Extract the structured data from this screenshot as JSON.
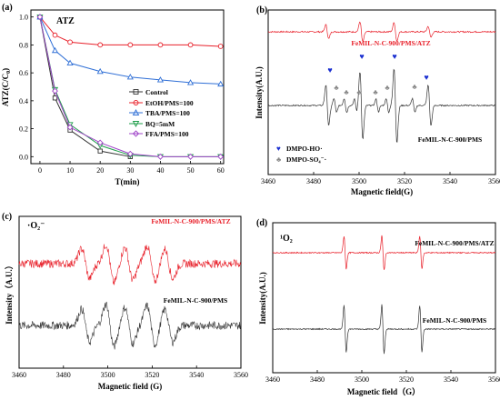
{
  "chart_data": [
    {
      "panel": "(a)",
      "type": "line",
      "annotation": "ATZ",
      "xlabel": "T(min)",
      "ylabel": "ATZ(C/C0)",
      "ylabel_main": "ATZ(C/C",
      "ylabel_sub": "0",
      "ylabel_close": ")",
      "xlim": [
        -3,
        61
      ],
      "ylim": [
        -0.05,
        1.05
      ],
      "xticks": [
        "0",
        "10",
        "20",
        "30",
        "40",
        "50",
        "60"
      ],
      "yticks": [
        "0.0",
        "0.2",
        "0.4",
        "0.6",
        "0.8",
        "1.0"
      ],
      "legend_position": "center-right",
      "series": [
        {
          "name": "Control",
          "color": "#333333",
          "marker": "square",
          "x": [
            0,
            5,
            10,
            20,
            30
          ],
          "values": [
            1.0,
            0.42,
            0.19,
            0.04,
            0.0
          ]
        },
        {
          "name": "EtOH/PMS=100",
          "color": "#e8202a",
          "marker": "circle",
          "x": [
            0,
            5,
            10,
            20,
            30,
            40,
            50,
            60
          ],
          "values": [
            1.0,
            0.87,
            0.82,
            0.8,
            0.8,
            0.8,
            0.8,
            0.79
          ]
        },
        {
          "name": "TBA/PMS=100",
          "color": "#2f6fd6",
          "marker": "triangle",
          "x": [
            0,
            5,
            10,
            20,
            30,
            40,
            50,
            60
          ],
          "values": [
            1.0,
            0.76,
            0.67,
            0.61,
            0.57,
            0.55,
            0.53,
            0.52
          ]
        },
        {
          "name": "BQ=5mM",
          "color": "#1e9e4a",
          "marker": "triangle-down",
          "x": [
            0,
            5,
            10,
            20,
            30,
            40,
            50,
            60
          ],
          "values": [
            1.0,
            0.48,
            0.23,
            0.08,
            0.01,
            0.0,
            0.0,
            0.0
          ]
        },
        {
          "name": "FFA/PMS=100",
          "color": "#a046c8",
          "marker": "diamond",
          "x": [
            0,
            5,
            10,
            20,
            30,
            40,
            50,
            60
          ],
          "values": [
            1.0,
            0.47,
            0.21,
            0.1,
            0.02,
            0.0,
            0.0,
            0.0
          ]
        }
      ]
    },
    {
      "panel": "(b)",
      "type": "line",
      "xlabel": "Magnetic field(G)",
      "ylabel": "Intensity(A.U.)",
      "xlim": [
        3460,
        3560
      ],
      "xticks": [
        "3460",
        "3480",
        "3500",
        "3520",
        "3540",
        "3560"
      ],
      "traces": [
        {
          "label": "FeMIL-N-C-900/PMS/ATZ",
          "color": "#e8202a"
        },
        {
          "label": "FeMIL-N-C-900/PMS",
          "color": "#333333"
        }
      ],
      "markers": {
        "ho": "♥",
        "so4": "♣"
      },
      "legend": [
        "DMPO-HO·",
        "DMPO-SO₄⁻·"
      ],
      "legend_colors": [
        "#1a2fd0",
        "#888888"
      ]
    },
    {
      "panel": "(c)",
      "type": "line",
      "annotation": "·O₂⁻",
      "xlabel": "Magnetic field (G)",
      "ylabel": "Intensity（A.U.）",
      "xlim": [
        3460,
        3560
      ],
      "xticks": [
        "3460",
        "3480",
        "3500",
        "3520",
        "3540",
        "3560"
      ],
      "traces": [
        {
          "label": "FeMIL-N-C-900/PMS/ATZ",
          "color": "#e8202a"
        },
        {
          "label": "FeMIL-N-C-900/PMS",
          "color": "#333333"
        }
      ]
    },
    {
      "panel": "(d)",
      "type": "line",
      "annotation": "¹O₂",
      "xlabel": "Magnetic field（G）",
      "ylabel": "Intensity(A.U.)",
      "xlim": [
        3460,
        3560
      ],
      "xticks": [
        "3460",
        "3480",
        "3500",
        "3520",
        "3540",
        "3560"
      ],
      "traces": [
        {
          "label": "FeMIL-N-C-900/PMS/ATZ",
          "color": "#e8202a"
        },
        {
          "label": "FeMIL-N-C-900/PMS",
          "color": "#333333"
        }
      ]
    }
  ]
}
